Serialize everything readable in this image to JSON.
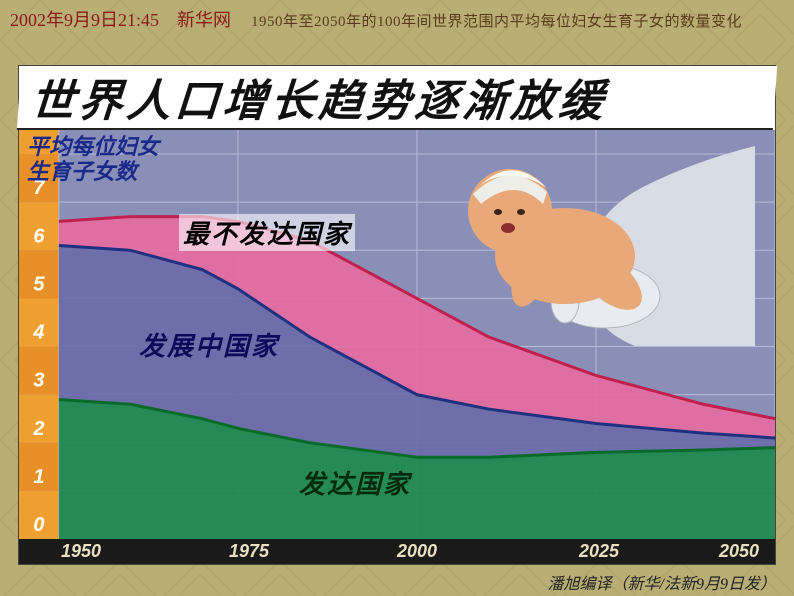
{
  "header": {
    "date": "2002年9月9日21:45",
    "source": "新华网",
    "subtitle": "1950年至2050年的100年间世界范围内平均每位妇女生育子女的数量变化"
  },
  "chart": {
    "title": "世界人口增长趋势逐渐放缓",
    "y_axis_label_line1": "平均每位妇女",
    "y_axis_label_line2": "生育子女数",
    "x_ticks": [
      "1950",
      "1975",
      "2000",
      "2025",
      "2050"
    ],
    "y_ticks": [
      0,
      1,
      2,
      3,
      4,
      5,
      6,
      7,
      8
    ],
    "ylim": [
      0,
      8.5
    ],
    "xlim": [
      1950,
      2050
    ],
    "background_color": "#8a8fb8",
    "grid_color": "#b8bcd6",
    "y_band_colors_alt": [
      "#f0a030",
      "#e89028"
    ],
    "series": [
      {
        "name": "最不发达国家",
        "label": "最不发达国家",
        "line_color": "#c02050",
        "fill_color": "#e86aa0",
        "line_width": 3,
        "points": [
          [
            1950,
            6.6
          ],
          [
            1960,
            6.7
          ],
          [
            1970,
            6.7
          ],
          [
            1975,
            6.6
          ],
          [
            1985,
            6.2
          ],
          [
            1990,
            5.8
          ],
          [
            2000,
            5.0
          ],
          [
            2010,
            4.2
          ],
          [
            2025,
            3.4
          ],
          [
            2040,
            2.8
          ],
          [
            2050,
            2.5
          ]
        ]
      },
      {
        "name": "发展中国家",
        "label": "发展中国家",
        "line_color": "#203080",
        "fill_color": "#6a6aa8",
        "line_width": 3,
        "points": [
          [
            1950,
            6.1
          ],
          [
            1960,
            6.0
          ],
          [
            1970,
            5.6
          ],
          [
            1975,
            5.2
          ],
          [
            1985,
            4.2
          ],
          [
            1990,
            3.8
          ],
          [
            2000,
            3.0
          ],
          [
            2010,
            2.7
          ],
          [
            2025,
            2.4
          ],
          [
            2040,
            2.2
          ],
          [
            2050,
            2.1
          ]
        ]
      },
      {
        "name": "发达国家",
        "label": "发达国家",
        "line_color": "#0a6a2a",
        "fill_color": "#1a8a4a",
        "line_width": 3,
        "points": [
          [
            1950,
            2.9
          ],
          [
            1960,
            2.8
          ],
          [
            1970,
            2.5
          ],
          [
            1975,
            2.3
          ],
          [
            1985,
            2.0
          ],
          [
            1990,
            1.9
          ],
          [
            2000,
            1.7
          ],
          [
            2010,
            1.7
          ],
          [
            2025,
            1.8
          ],
          [
            2040,
            1.85
          ],
          [
            2050,
            1.9
          ]
        ]
      }
    ]
  },
  "caption": "潘旭编译（新华/法新9月9日发）",
  "colors": {
    "slide_bg": "#b9af75",
    "header_text": "#8b1a1a",
    "title_text": "#111111",
    "x_strip_bg": "#1a1a1a",
    "x_strip_text": "#e8e0c0"
  },
  "illustration": {
    "present": true,
    "description": "baby held by gloved hands",
    "baby_skin": "#e8a878",
    "glove_color": "#e8ecf0",
    "sleeve_color": "#d8dce4"
  }
}
